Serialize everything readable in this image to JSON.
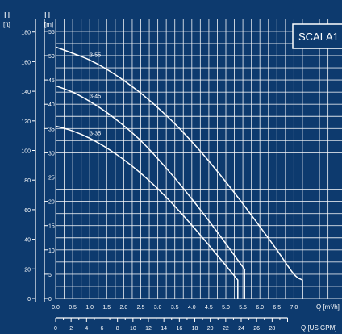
{
  "colors": {
    "background": "#0d3a6e",
    "foreground": "#ffffff"
  },
  "chart_data": {
    "type": "line",
    "title": "SCALA1",
    "axes": {
      "h_ft": {
        "head": "H",
        "unit": "[ft]",
        "ticks": [
          0,
          20,
          40,
          60,
          80,
          100,
          120,
          140,
          160,
          180
        ]
      },
      "h_m": {
        "head": "H",
        "unit": "[m]",
        "ticks": [
          0,
          5,
          10,
          15,
          20,
          25,
          30,
          35,
          40,
          45,
          50,
          55
        ]
      },
      "q_m3h": {
        "label": "Q [m³/h]",
        "ticks": [
          "0.0",
          "0.5",
          "1.0",
          "1.5",
          "2.0",
          "2.5",
          "3.0",
          "3.5",
          "4.0",
          "4.5",
          "5.0",
          "5.5",
          "6.0",
          "6.5",
          "7.0"
        ]
      },
      "q_usgpm": {
        "label": "Q [US GPM]",
        "ticks": [
          0,
          2,
          4,
          6,
          8,
          10,
          12,
          14,
          16,
          18,
          20,
          22,
          24,
          26,
          28
        ]
      }
    },
    "xlim": [
      0,
      8.2
    ],
    "ylim": [
      0,
      58
    ],
    "grid": true,
    "series": [
      {
        "name": "3-55",
        "x": [
          0,
          0.5,
          1.0,
          1.5,
          2.0,
          2.5,
          3.0,
          3.5,
          4.0,
          4.5,
          5.0,
          5.5,
          6.0,
          6.5,
          7.0,
          7.25
        ],
        "y": [
          51.8,
          50.5,
          49.1,
          47.2,
          44.9,
          42.3,
          39.3,
          36.0,
          32.3,
          28.3,
          24.0,
          19.5,
          14.8,
          10.0,
          5.0,
          3.8
        ]
      },
      {
        "name": "3-45",
        "x": [
          0,
          0.5,
          1.0,
          1.5,
          2.0,
          2.5,
          3.0,
          3.5,
          4.0,
          4.5,
          5.0,
          5.5,
          5.55
        ],
        "y": [
          43.8,
          42.5,
          40.6,
          38.3,
          35.6,
          32.5,
          28.8,
          24.8,
          20.5,
          16.0,
          11.3,
          6.5,
          6.0
        ]
      },
      {
        "name": "3-35",
        "x": [
          0,
          0.5,
          1.0,
          1.5,
          2.0,
          2.5,
          3.0,
          3.5,
          4.0,
          4.5,
          5.0,
          5.35
        ],
        "y": [
          35.5,
          34.5,
          33.0,
          31.0,
          28.6,
          25.8,
          22.6,
          19.0,
          15.1,
          11.0,
          6.8,
          3.8
        ]
      }
    ]
  }
}
